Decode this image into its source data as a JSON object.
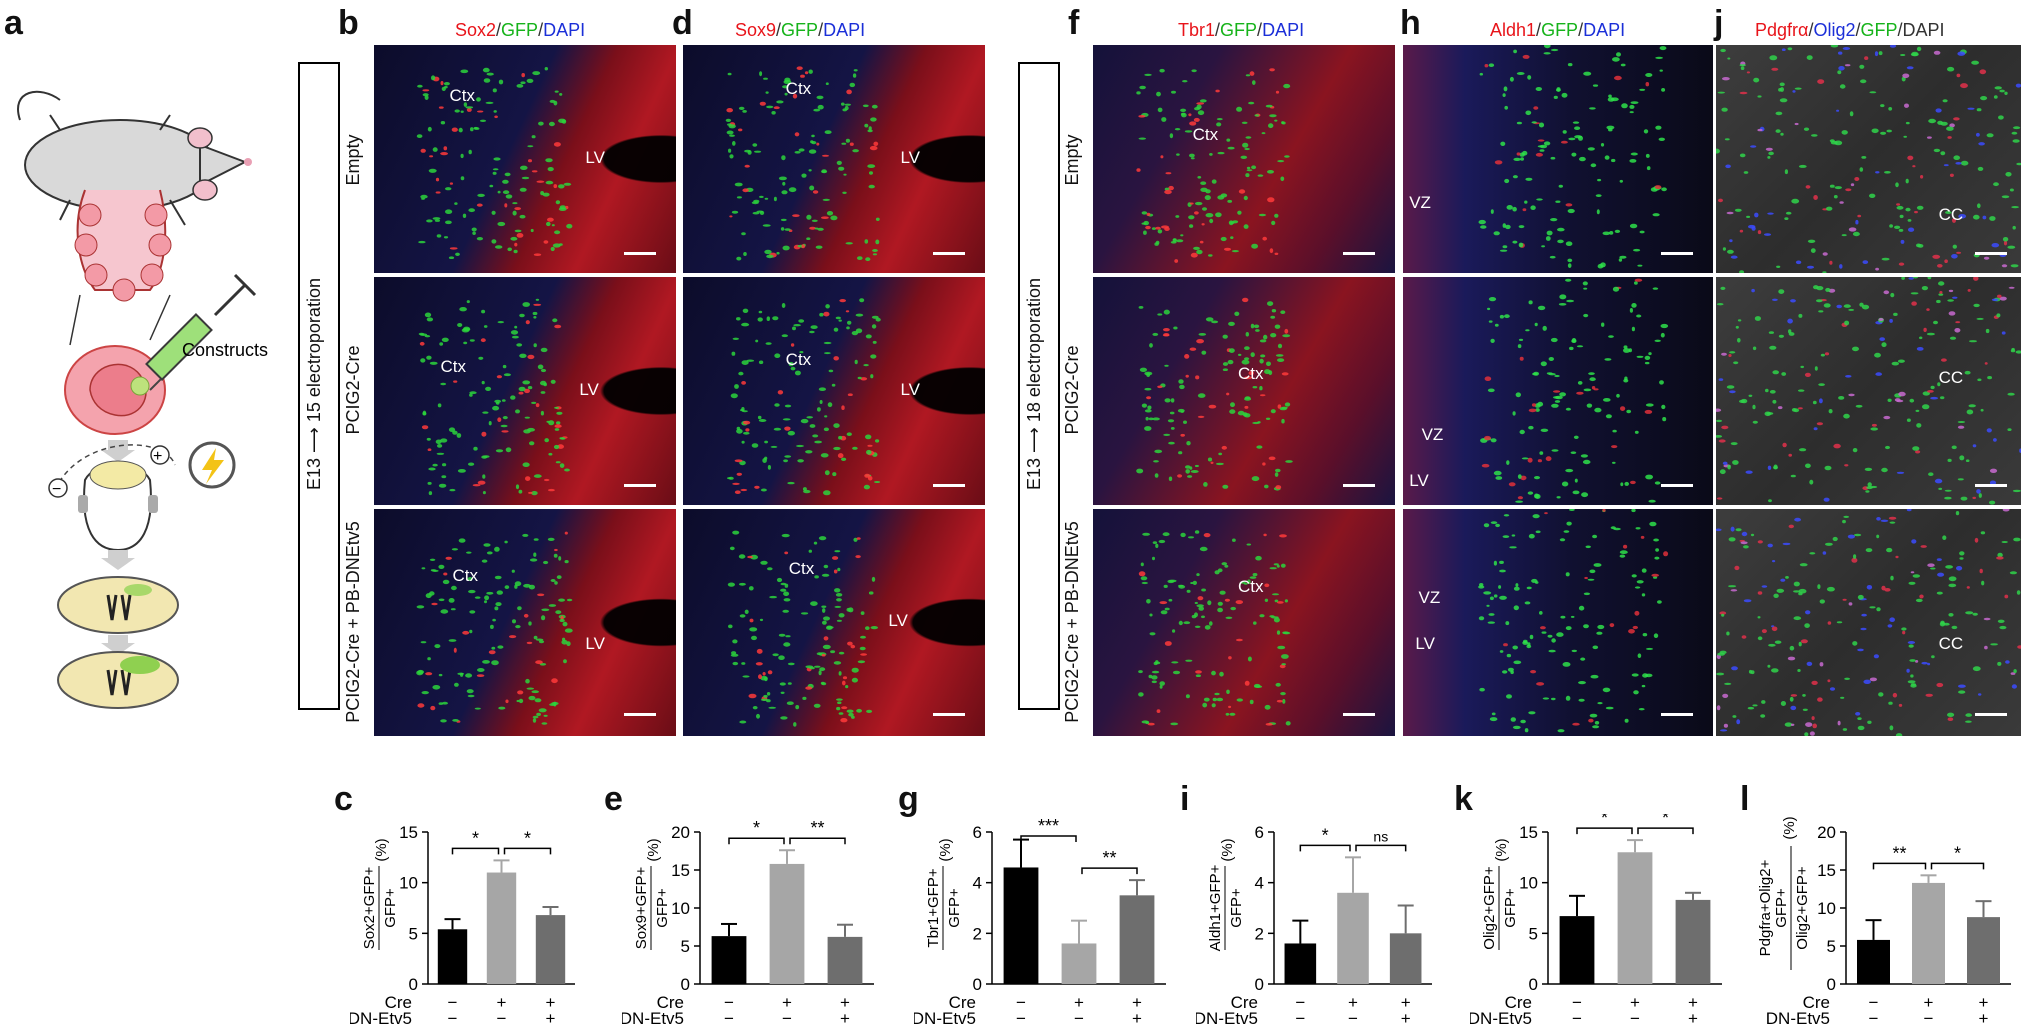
{
  "panel_letters": [
    "a",
    "b",
    "d",
    "f",
    "h",
    "j",
    "c",
    "e",
    "g",
    "i",
    "k",
    "l"
  ],
  "schematic": {
    "constructs_label": "Constructs",
    "minus": "−",
    "plus": "+"
  },
  "markers": {
    "b": [
      {
        "t": "Sox2",
        "c": "red"
      },
      {
        "t": "/",
        "c": "gray"
      },
      {
        "t": "GFP",
        "c": "green"
      },
      {
        "t": "/",
        "c": "gray"
      },
      {
        "t": "DAPI",
        "c": "blue"
      }
    ],
    "d": [
      {
        "t": "Sox9",
        "c": "red"
      },
      {
        "t": "/",
        "c": "gray"
      },
      {
        "t": "GFP",
        "c": "green"
      },
      {
        "t": "/",
        "c": "gray"
      },
      {
        "t": "DAPI",
        "c": "blue"
      }
    ],
    "f": [
      {
        "t": "Tbr1",
        "c": "red"
      },
      {
        "t": "/",
        "c": "gray"
      },
      {
        "t": "GFP",
        "c": "green"
      },
      {
        "t": "/",
        "c": "gray"
      },
      {
        "t": "DAPI",
        "c": "blue"
      }
    ],
    "h": [
      {
        "t": "Aldh1",
        "c": "red"
      },
      {
        "t": "/",
        "c": "gray"
      },
      {
        "t": "GFP",
        "c": "green"
      },
      {
        "t": "/",
        "c": "gray"
      },
      {
        "t": "DAPI",
        "c": "blue"
      }
    ],
    "j": [
      {
        "t": "Pdgfrα",
        "c": "red"
      },
      {
        "t": "/",
        "c": "gray"
      },
      {
        "t": "Olig2",
        "c": "blue"
      },
      {
        "t": "/",
        "c": "gray"
      },
      {
        "t": "GFP",
        "c": "green"
      },
      {
        "t": "/DAPI",
        "c": "gray"
      }
    ]
  },
  "row_labels": [
    "Empty",
    "PCIG2-Cre",
    "PCIG2-Cre + PB-DNEtv5"
  ],
  "experiment_labels": {
    "left": "E13 ⟶ 15 electroporation",
    "right": "E13 ⟶ 18 electroporation"
  },
  "image_labels": {
    "b": [
      [
        "Ctx",
        "LV"
      ],
      [
        "Ctx",
        "LV"
      ],
      [
        "Ctx",
        "LV"
      ]
    ],
    "d": [
      [
        "Ctx",
        "LV"
      ],
      [
        "Ctx",
        "LV"
      ],
      [
        "Ctx",
        "LV"
      ]
    ],
    "f": [
      [
        "Ctx"
      ],
      [
        "Ctx"
      ],
      [
        "Ctx"
      ]
    ],
    "h": [
      [
        "VZ"
      ],
      [
        "VZ",
        "LV"
      ],
      [
        "VZ",
        "LV"
      ]
    ],
    "j": [
      [
        "CC"
      ],
      [
        "CC"
      ],
      [
        "CC"
      ]
    ]
  },
  "conditions": {
    "row1_label": "Cre",
    "row2_label": "DN-Etv5",
    "row1": [
      "−",
      "+",
      "+"
    ],
    "row2": [
      "−",
      "−",
      "+"
    ]
  },
  "chart_data": [
    {
      "type": "bar",
      "panel": "c",
      "ylabel_top": "Sox2+GFP+",
      "ylabel_bottom": "GFP+",
      "unit": "(%)",
      "ylim": [
        0,
        15
      ],
      "yticks": [
        0,
        5,
        10,
        15
      ],
      "values": [
        5.4,
        11.0,
        6.8
      ],
      "errors": [
        1.0,
        1.2,
        0.8
      ],
      "sig": [
        {
          "from": 0,
          "to": 1,
          "label": "*"
        },
        {
          "from": 1,
          "to": 2,
          "label": "*"
        }
      ]
    },
    {
      "type": "bar",
      "panel": "e",
      "ylabel_top": "Sox9+GFP+",
      "ylabel_bottom": "GFP+",
      "unit": "(%)",
      "ylim": [
        0,
        20
      ],
      "yticks": [
        0,
        5,
        10,
        15,
        20
      ],
      "values": [
        6.3,
        15.8,
        6.2
      ],
      "errors": [
        1.6,
        1.8,
        1.6
      ],
      "sig": [
        {
          "from": 0,
          "to": 1,
          "label": "*"
        },
        {
          "from": 1,
          "to": 2,
          "label": "**"
        }
      ]
    },
    {
      "type": "bar",
      "panel": "g",
      "ylabel_top": "Tbr1+GFP+",
      "ylabel_bottom": "GFP+",
      "unit": "(%)",
      "ylim": [
        0,
        6
      ],
      "yticks": [
        0,
        2,
        4,
        6
      ],
      "values": [
        4.6,
        1.6,
        3.5
      ],
      "errors": [
        1.1,
        0.9,
        0.6
      ],
      "sig": [
        {
          "from": 0,
          "to": 1,
          "label": "***"
        },
        {
          "from": 1,
          "to": 2,
          "label": "**"
        }
      ]
    },
    {
      "type": "bar",
      "panel": "i",
      "ylabel_top": "Aldh1+GFP+",
      "ylabel_bottom": "GFP+",
      "unit": "(%)",
      "ylim": [
        0,
        6
      ],
      "yticks": [
        0,
        2,
        4,
        6
      ],
      "values": [
        1.6,
        3.6,
        2.0
      ],
      "errors": [
        0.9,
        1.4,
        1.1
      ],
      "sig": [
        {
          "from": 0,
          "to": 1,
          "label": "*"
        },
        {
          "from": 1,
          "to": 2,
          "label": "ns"
        }
      ]
    },
    {
      "type": "bar",
      "panel": "k",
      "ylabel_top": "Olig2+GFP+",
      "ylabel_bottom": "GFP+",
      "unit": "(%)",
      "ylim": [
        0,
        15
      ],
      "yticks": [
        0,
        5,
        10,
        15
      ],
      "values": [
        6.7,
        13.0,
        8.3
      ],
      "errors": [
        2.0,
        1.2,
        0.7
      ],
      "sig": [
        {
          "from": 0,
          "to": 1,
          "label": "*"
        },
        {
          "from": 1,
          "to": 2,
          "label": "*"
        }
      ]
    },
    {
      "type": "bar",
      "panel": "l",
      "ylabel_top": "Pdgfra+Olig2+",
      "ylabel_mid": "GFP+",
      "ylabel_bottom": "Olig2+GFP+",
      "unit": "(%)",
      "ylim": [
        0,
        20
      ],
      "yticks": [
        0,
        5,
        10,
        15,
        20
      ],
      "values": [
        5.8,
        13.3,
        8.8
      ],
      "errors": [
        2.6,
        1.0,
        2.1
      ],
      "sig": [
        {
          "from": 0,
          "to": 1,
          "label": "**"
        },
        {
          "from": 1,
          "to": 2,
          "label": "*"
        }
      ]
    }
  ],
  "bar_colors": [
    "#000000",
    "#a6a6a6",
    "#6e6e6e"
  ]
}
